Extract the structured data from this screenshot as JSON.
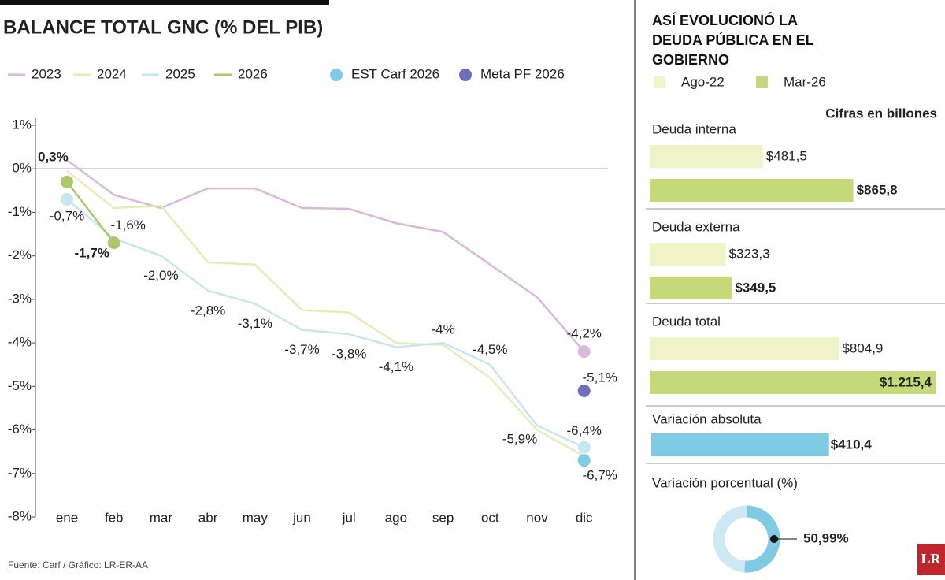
{
  "source": "Fuente: Carf / Gráfico: LR-ER-AA",
  "logo": "LR",
  "chart_data": [
    {
      "type": "line",
      "title": "BALANCE TOTAL GNC (% DEL PIB)",
      "categories": [
        "ene",
        "feb",
        "mar",
        "abr",
        "may",
        "jun",
        "jul",
        "ago",
        "sep",
        "oct",
        "nov",
        "dic"
      ],
      "ylim": [
        -8,
        1
      ],
      "yticks": [
        {
          "value": 1,
          "label": "1%"
        },
        {
          "value": 0,
          "label": "0%"
        },
        {
          "value": -1,
          "label": "-1%"
        },
        {
          "value": -2,
          "label": "-2%"
        },
        {
          "value": -3,
          "label": "-3%"
        },
        {
          "value": -4,
          "label": "-4%"
        },
        {
          "value": -5,
          "label": "-5%"
        },
        {
          "value": -6,
          "label": "-6%"
        },
        {
          "value": -7,
          "label": "-7%"
        },
        {
          "value": -8,
          "label": "-8%"
        }
      ],
      "annotation": "0,3%",
      "series": [
        {
          "name": "2023",
          "color": "#d9b8dc",
          "markers": "end",
          "values": [
            0.2,
            -0.6,
            -0.9,
            -0.45,
            -0.45,
            -0.9,
            -0.92,
            -1.25,
            -1.45,
            -2.2,
            -2.95,
            -4.2
          ],
          "value_labels": [
            null,
            null,
            null,
            null,
            null,
            null,
            null,
            null,
            null,
            null,
            null,
            "-4,2%"
          ]
        },
        {
          "name": "2024",
          "color": "#e6edb4",
          "values": [
            -0.05,
            -0.9,
            -0.85,
            -2.15,
            -2.2,
            -3.25,
            -3.3,
            -4.0,
            -4.05,
            -4.8,
            -6.0,
            -6.6
          ]
        },
        {
          "name": "2025",
          "color": "#c6e6f1",
          "markers": "both",
          "values": [
            -0.7,
            -1.6,
            -2.0,
            -2.8,
            -3.1,
            -3.7,
            -3.8,
            -4.1,
            -4.0,
            -4.5,
            -5.9,
            -6.4
          ],
          "value_labels": [
            "-0,7%",
            "-1,6%",
            "-2,0%",
            "-2,8%",
            "-3,1%",
            "-3,7%",
            "-3,8%",
            "-4,1%",
            "-4%",
            "-4,5%",
            "-5,9%",
            "-6,4%"
          ]
        },
        {
          "name": "2026",
          "color": "#a9c96a",
          "markers": "both",
          "values": [
            -0.3,
            -1.7,
            null,
            null,
            null,
            null,
            null,
            null,
            null,
            null,
            null,
            null
          ],
          "value_labels": [
            null,
            "-1,7%",
            null,
            null,
            null,
            null,
            null,
            null,
            null,
            null,
            null,
            null
          ]
        },
        {
          "name": "EST Carf 2026",
          "type": "scatter",
          "color": "#7ecbe3",
          "values": [
            null,
            null,
            null,
            null,
            null,
            null,
            null,
            null,
            null,
            null,
            null,
            -6.7
          ],
          "value_labels": [
            null,
            null,
            null,
            null,
            null,
            null,
            null,
            null,
            null,
            null,
            null,
            "-6,7%"
          ]
        },
        {
          "name": "Meta PF 2026",
          "type": "scatter",
          "color": "#6e6fb8",
          "values": [
            null,
            null,
            null,
            null,
            null,
            null,
            null,
            null,
            null,
            null,
            null,
            -5.1
          ],
          "value_labels": [
            null,
            null,
            null,
            null,
            null,
            null,
            null,
            null,
            null,
            null,
            null,
            "-5,1%"
          ]
        }
      ]
    },
    {
      "type": "bar",
      "orientation": "horizontal",
      "title": "ASÍ EVOLUCIONÓ LA DEUDA PÚBLICA EN EL GOBIERNO",
      "note": "Cifras en billones",
      "categories": [
        "Deuda interna",
        "Deuda externa",
        "Deuda total"
      ],
      "xlim": [
        0,
        1215.4
      ],
      "series": [
        {
          "name": "Ago-22",
          "color": "#eef3c8",
          "values": [
            481.5,
            323.3,
            804.9
          ],
          "value_labels": [
            "$481,5",
            "$323,3",
            "$804,9"
          ]
        },
        {
          "name": "Mar-26",
          "color": "#c5d97a",
          "values": [
            865.8,
            349.5,
            1215.4
          ],
          "value_labels": [
            "$865,8",
            "$349,5",
            "$1.215,4"
          ]
        }
      ]
    },
    {
      "type": "bar",
      "orientation": "horizontal",
      "categories": [
        "Variación absoluta"
      ],
      "xlim": [
        0,
        660
      ],
      "values": [
        410.4
      ],
      "value_labels": [
        "$410,4"
      ],
      "color": "#7ecbe3"
    },
    {
      "type": "pie",
      "title": "Variación porcentual (%)",
      "values": [
        50.99
      ],
      "value_labels": [
        "50,99%"
      ],
      "color": "#7ecbe3",
      "background": "#cde9f3"
    }
  ]
}
